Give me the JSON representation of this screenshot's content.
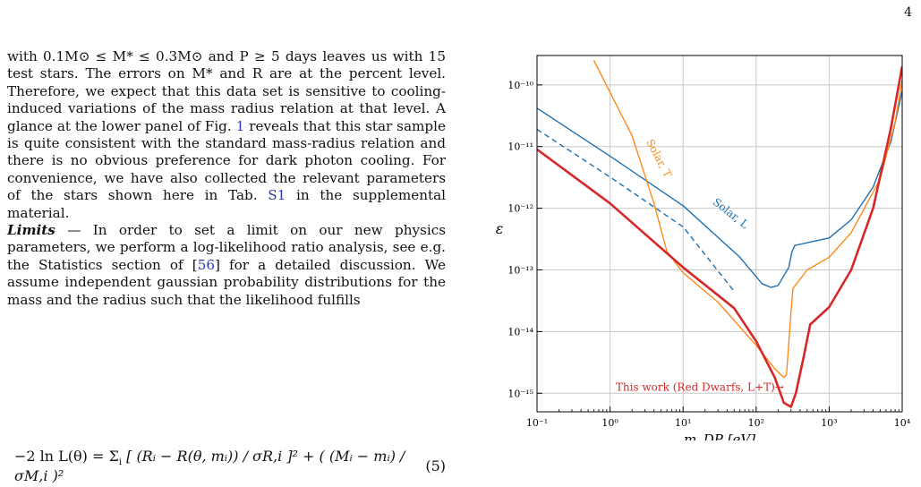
{
  "page_number": "4",
  "text": {
    "para1": "with 0.1M⊙ ≤ M* ≤ 0.3M⊙ and P ≥ 5 days leaves us with 15 test stars. The errors on M* and R are at the percent level. Therefore, we expect that this data set is sensitive to cooling-induced variations of the mass radius relation at that level. A glance at the lower panel of Fig.",
    "fig_ref": "1",
    "para1b": "reveals that this star sample is quite consistent with the standard mass-radius relation and there is no obvious preference for dark photon cooling. For convenience, we have also collected the relevant parameters of the stars shown here in Tab.",
    "tab_ref": "S1",
    "para1c": "in the supplemental material.",
    "limits_head": "Limits",
    "limits_sep": " — ",
    "para2a": "In order to set a limit on our new physics parameters, we perform a log-likelihood ratio analysis, see e.g. the Statistics section of [",
    "cite": "56",
    "para2b": "] for a detailed discussion. We assume independent gaussian probability distributions for the mass and the radius such that the likelihood fulfills",
    "eq_lhs": "−2 ln L(θ) = Σ",
    "eq_sub": "i",
    "eq_rhs": "[ (Rᵢ − R(θ, mᵢ)) / σR,i ]² + ( (Mᵢ − mᵢ) / σM,i )²",
    "eq_num": "(5)"
  },
  "chart_data": {
    "type": "line",
    "xlabel": "m_DP [eV]",
    "ylabel": "ε",
    "xscale": "log",
    "yscale": "log",
    "xlim": [
      0.1,
      10000
    ],
    "ylim": [
      5e-16,
      3e-10
    ],
    "x_ticks": [
      "10⁻¹",
      "10⁰",
      "10¹",
      "10²",
      "10³",
      "10⁴"
    ],
    "y_ticks": [
      "10⁻¹⁵",
      "10⁻¹⁴",
      "10⁻¹³",
      "10⁻¹²",
      "10⁻¹¹",
      "10⁻¹⁰"
    ],
    "grid": true,
    "series": [
      {
        "name": "Solar, L",
        "color": "#1f6fb0",
        "style": "solid",
        "points": [
          [
            0.1,
            4.2e-11
          ],
          [
            1,
            7e-12
          ],
          [
            10,
            1.1e-12
          ],
          [
            60,
            1.6e-13
          ],
          [
            120,
            6e-14
          ],
          [
            160,
            5.2e-14
          ],
          [
            200,
            5.6e-14
          ],
          [
            280,
            1.1e-13
          ],
          [
            310,
            2e-13
          ],
          [
            340,
            2.5e-13
          ],
          [
            1000,
            3.3e-13
          ],
          [
            2000,
            6.5e-13
          ],
          [
            4000,
            2.2e-12
          ],
          [
            7000,
            1.2e-11
          ],
          [
            10000,
            8e-11
          ]
        ]
      },
      {
        "name": "",
        "color": "#1f6fb0",
        "style": "dashed",
        "points": [
          [
            0.1,
            1.9e-11
          ],
          [
            1,
            3.2e-12
          ],
          [
            10,
            5e-13
          ],
          [
            50,
            4.5e-14
          ]
        ]
      },
      {
        "name": "Solar, T",
        "color": "#ff8a1a",
        "style": "solid",
        "points": [
          [
            0.6,
            2.5e-10
          ],
          [
            2,
            1.5e-11
          ],
          [
            4,
            1.2e-12
          ],
          [
            6,
            2e-13
          ],
          [
            10,
            9e-14
          ],
          [
            30,
            3e-14
          ],
          [
            100,
            6e-15
          ],
          [
            180,
            2.5e-15
          ],
          [
            240,
            1.8e-15
          ],
          [
            260,
            2e-15
          ],
          [
            300,
            2e-14
          ],
          [
            320,
            5e-14
          ],
          [
            500,
            1e-13
          ],
          [
            1000,
            1.6e-13
          ],
          [
            2000,
            4e-13
          ],
          [
            5000,
            3e-12
          ],
          [
            8000,
            2.5e-11
          ],
          [
            10000,
            1.2e-10
          ]
        ]
      },
      {
        "name": "This work (Red Dwarfs, L+T)",
        "color": "#d62828",
        "style": "solid",
        "points": [
          [
            0.1,
            9e-12
          ],
          [
            1,
            1.2e-12
          ],
          [
            10,
            1.1e-13
          ],
          [
            50,
            2.4e-14
          ],
          [
            100,
            7e-15
          ],
          [
            180,
            1.8e-15
          ],
          [
            240,
            7e-16
          ],
          [
            300,
            6e-16
          ],
          [
            350,
            1e-15
          ],
          [
            450,
            4e-15
          ],
          [
            550,
            1.3e-14
          ],
          [
            1000,
            2.5e-14
          ],
          [
            2000,
            1e-13
          ],
          [
            4000,
            1e-12
          ],
          [
            7000,
            2e-11
          ],
          [
            10000,
            2e-10
          ]
        ]
      }
    ],
    "annotations": [
      "Solar, L",
      "Solar, T",
      "This work (Red Dwarfs, L+T)→"
    ]
  }
}
